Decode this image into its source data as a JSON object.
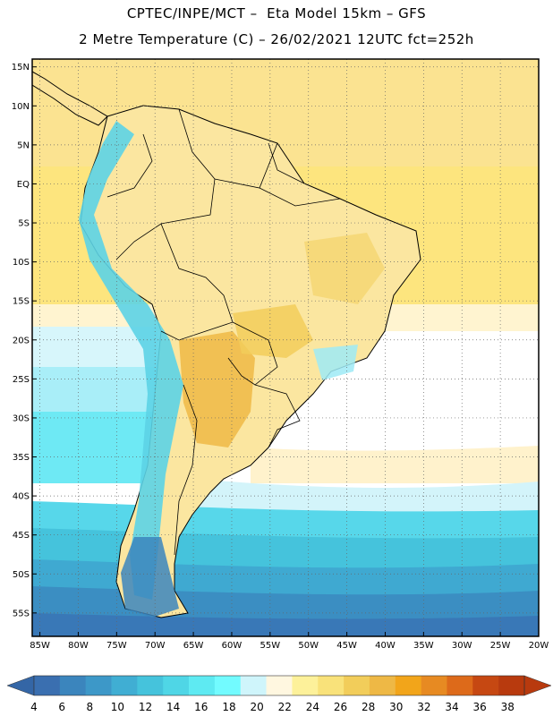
{
  "header": {
    "line1": "CPTEC/INPE/MCT –  Eta Model 15km – GFS",
    "line2": "2 Metre Temperature (C) – 26/02/2021 12UTC fct=252h"
  },
  "map": {
    "region": "South America",
    "lat_range": [
      -58,
      16
    ],
    "lon_range": [
      -86,
      -20
    ],
    "lat_ticks": [
      "15N",
      "10N",
      "5N",
      "EQ",
      "5S",
      "10S",
      "15S",
      "20S",
      "25S",
      "30S",
      "35S",
      "40S",
      "45S",
      "50S",
      "55S"
    ],
    "lon_ticks": [
      "85W",
      "80W",
      "75W",
      "70W",
      "65W",
      "60W",
      "55W",
      "50W",
      "45W",
      "40W",
      "35W",
      "30W",
      "25W",
      "20W"
    ]
  },
  "colorbar": {
    "labels": [
      "4",
      "6",
      "8",
      "10",
      "12",
      "14",
      "16",
      "18",
      "20",
      "22",
      "24",
      "26",
      "28",
      "30",
      "32",
      "34",
      "36",
      "38"
    ],
    "colors": [
      "#3a6fb0",
      "#3b85bd",
      "#3d98c8",
      "#40aed3",
      "#45c3dc",
      "#4fd6e6",
      "#5eeaf2",
      "#72fbff",
      "#cff5fb",
      "#fff7e0",
      "#fdf19a",
      "#f9e27a",
      "#f2cd5a",
      "#eeb845",
      "#f2a51a",
      "#e78a22",
      "#dd6a1a",
      "#c64812",
      "#b83a0e"
    ],
    "low_arrow_color": "#3466a6",
    "high_arrow_color": "#b83a0e"
  }
}
